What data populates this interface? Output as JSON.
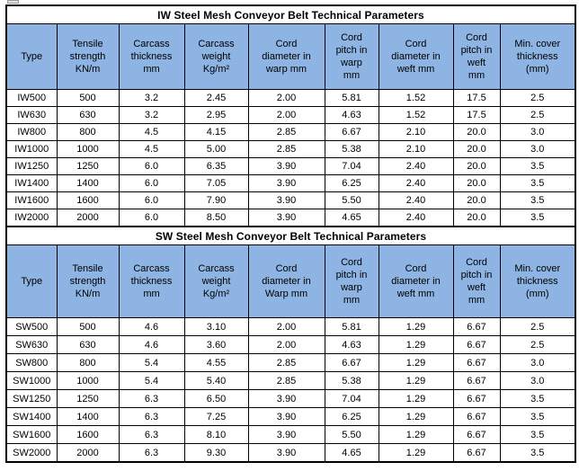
{
  "page": {
    "background": "#ffffff"
  },
  "colors": {
    "header_bg": "#8db4e2",
    "border": "#000000",
    "title_bg": "#ffffff",
    "text": "#000000"
  },
  "icons": {
    "top_left": "image-placeholder-icon"
  },
  "tables": [
    {
      "id": "iw",
      "title": "IW Steel Mesh Conveyor Belt Technical Parameters",
      "headers": [
        "Type",
        "Tensile\nstrength\nKN/m",
        "Carcass\nthickness\nmm",
        "Carcass\nweight\nKg/m²",
        "Cord\ndiameter in\nwarp mm",
        "Cord\npitch in\nwarp\nmm",
        "Cord\ndiameter in\nweft mm",
        "Cord\npitch in\nweft\nmm",
        "Min. cover\nthickness\n(mm)"
      ],
      "rows": [
        [
          "IW500",
          "500",
          "3.2",
          "2.45",
          "2.00",
          "5.81",
          "1.52",
          "17.5",
          "2.5"
        ],
        [
          "IW630",
          "630",
          "3.2",
          "2.95",
          "2.00",
          "4.63",
          "1.52",
          "17.5",
          "2.5"
        ],
        [
          "IW800",
          "800",
          "4.5",
          "4.15",
          "2.85",
          "6.67",
          "2.10",
          "20.0",
          "3.0"
        ],
        [
          "IW1000",
          "1000",
          "4.5",
          "5.00",
          "2.85",
          "5.38",
          "2.10",
          "20.0",
          "3.0"
        ],
        [
          "IW1250",
          "1250",
          "6.0",
          "6.35",
          "3.90",
          "7.04",
          "2.40",
          "20.0",
          "3.5"
        ],
        [
          "IW1400",
          "1400",
          "6.0",
          "7.05",
          "3.90",
          "6.25",
          "2.40",
          "20.0",
          "3.5"
        ],
        [
          "IW1600",
          "1600",
          "6.0",
          "7.90",
          "3.90",
          "5.50",
          "2.40",
          "20.0",
          "3.5"
        ],
        [
          "IW2000",
          "2000",
          "6.0",
          "8.50",
          "3.90",
          "4.65",
          "2.40",
          "20.0",
          "3.5"
        ]
      ]
    },
    {
      "id": "sw",
      "title": "SW Steel Mesh Conveyor Belt Technical Parameters",
      "headers": [
        "Type",
        "Tensile\nstrength\nKN/m",
        "Carcass\nthickness\nmm",
        "Carcass\nweight\nKg/m²",
        "Cord\ndiameter in\nWarp mm",
        "Cord\npitch in\nwarp\nmm",
        "Cord\ndiameter in\nweft mm",
        "Cord\npitch in\nweft\nmm",
        "Min. cover\nthickness\n(mm)"
      ],
      "rows": [
        [
          "SW500",
          "500",
          "4.6",
          "3.10",
          "2.00",
          "5.81",
          "1.29",
          "6.67",
          "2.5"
        ],
        [
          "SW630",
          "630",
          "4.6",
          "3.60",
          "2.00",
          "4.63",
          "1.29",
          "6.67",
          "2.5"
        ],
        [
          "SW800",
          "800",
          "5.4",
          "4.55",
          "2.85",
          "6.67",
          "1.29",
          "6.67",
          "3.0"
        ],
        [
          "SW1000",
          "1000",
          "5.4",
          "5.40",
          "2.85",
          "5.38",
          "1.29",
          "6.67",
          "3.0"
        ],
        [
          "SW1250",
          "1250",
          "6.3",
          "6.50",
          "3.90",
          "7.04",
          "1.29",
          "6.67",
          "3.5"
        ],
        [
          "SW1400",
          "1400",
          "6.3",
          "7.25",
          "3.90",
          "6.25",
          "1.29",
          "6.67",
          "3.5"
        ],
        [
          "SW1600",
          "1600",
          "6.3",
          "8.10",
          "3.90",
          "5.50",
          "1.29",
          "6.67",
          "3.5"
        ],
        [
          "SW2000",
          "2000",
          "6.3",
          "9.30",
          "3.90",
          "4.65",
          "1.29",
          "6.67",
          "3.5"
        ]
      ]
    }
  ]
}
